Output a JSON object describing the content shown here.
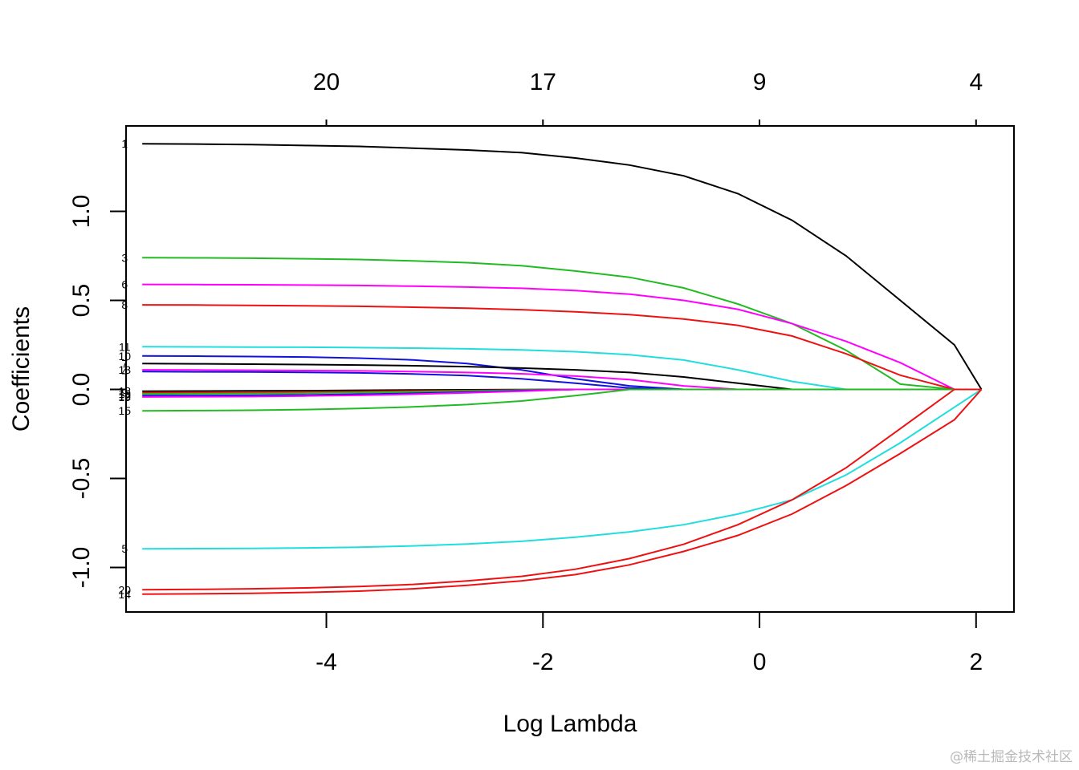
{
  "chart_data": {
    "type": "line",
    "title": "",
    "xlabel": "Log Lambda",
    "ylabel": "Coefficients",
    "xlim": [
      -5.85,
      2.35
    ],
    "ylim": [
      -1.25,
      1.48
    ],
    "x_ticks": [
      -4,
      -2,
      0,
      2
    ],
    "y_ticks": [
      -1.0,
      -0.5,
      0.0,
      0.5,
      1.0
    ],
    "y_tick_labels": [
      "-1.0",
      "-0.5",
      "0.0",
      "0.5",
      "1.0"
    ],
    "top_axis": {
      "positions": [
        -4,
        -2,
        0,
        2
      ],
      "labels": [
        "20",
        "17",
        "9",
        "4"
      ]
    },
    "grid": false,
    "legend": "none",
    "x": [
      -5.7,
      -5.2,
      -4.7,
      -4.2,
      -3.7,
      -3.2,
      -2.7,
      -2.2,
      -1.7,
      -1.2,
      -0.7,
      -0.2,
      0.3,
      0.8,
      1.3,
      1.8,
      2.05
    ],
    "series": [
      {
        "label": "1",
        "color": "#000000",
        "values": [
          1.38,
          1.378,
          1.375,
          1.37,
          1.365,
          1.355,
          1.345,
          1.33,
          1.3,
          1.26,
          1.2,
          1.1,
          0.95,
          0.75,
          0.5,
          0.25,
          0.0
        ]
      },
      {
        "label": "3",
        "color": "#22bb22",
        "values": [
          0.74,
          0.739,
          0.737,
          0.734,
          0.73,
          0.722,
          0.712,
          0.695,
          0.665,
          0.63,
          0.57,
          0.48,
          0.37,
          0.22,
          0.03,
          0.0,
          0.0
        ]
      },
      {
        "label": "6",
        "color": "#ff00ff",
        "values": [
          0.59,
          0.589,
          0.588,
          0.586,
          0.584,
          0.58,
          0.575,
          0.568,
          0.555,
          0.535,
          0.5,
          0.45,
          0.37,
          0.27,
          0.15,
          0.0,
          0.0
        ]
      },
      {
        "label": "8",
        "color": "#ee1111",
        "values": [
          0.475,
          0.474,
          0.472,
          0.47,
          0.467,
          0.462,
          0.456,
          0.448,
          0.436,
          0.42,
          0.395,
          0.36,
          0.3,
          0.2,
          0.08,
          0.0,
          0.0
        ]
      },
      {
        "label": "11",
        "color": "#22dddd",
        "values": [
          0.24,
          0.239,
          0.238,
          0.237,
          0.235,
          0.232,
          0.228,
          0.222,
          0.212,
          0.195,
          0.165,
          0.11,
          0.045,
          0.0,
          0.0,
          0.0,
          0.0
        ]
      },
      {
        "label": "10",
        "color": "#1111dd",
        "values": [
          0.188,
          0.187,
          0.185,
          0.182,
          0.176,
          0.166,
          0.145,
          0.11,
          0.06,
          0.02,
          0.0,
          0.0,
          0.0,
          0.0,
          0.0,
          0.0,
          0.0
        ]
      },
      {
        "label": "7",
        "color": "#000000",
        "values": [
          0.145,
          0.144,
          0.142,
          0.14,
          0.137,
          0.133,
          0.128,
          0.12,
          0.11,
          0.095,
          0.07,
          0.035,
          0.0,
          0.0,
          0.0,
          0.0,
          0.0
        ]
      },
      {
        "label": "13",
        "color": "#ff00ff",
        "values": [
          0.11,
          0.109,
          0.108,
          0.106,
          0.104,
          0.1,
          0.095,
          0.088,
          0.075,
          0.055,
          0.02,
          0.0,
          0.0,
          0.0,
          0.0,
          0.0,
          0.0
        ]
      },
      {
        "label": "4",
        "color": "#1111dd",
        "values": [
          0.1,
          0.099,
          0.098,
          0.096,
          0.093,
          0.087,
          0.078,
          0.06,
          0.035,
          0.008,
          0.0,
          0.0,
          0.0,
          0.0,
          0.0,
          0.0,
          0.0
        ]
      },
      {
        "label": "18",
        "color": "#000000",
        "values": [
          -0.01,
          -0.009,
          -0.008,
          -0.007,
          -0.005,
          -0.003,
          -0.002,
          -0.001,
          0.0,
          0.0,
          0.0,
          0.0,
          0.0,
          0.0,
          0.0,
          0.0,
          0.0
        ]
      },
      {
        "label": "9",
        "color": "#ee1111",
        "values": [
          -0.018,
          -0.017,
          -0.016,
          -0.014,
          -0.012,
          -0.009,
          -0.006,
          -0.003,
          0.0,
          0.0,
          0.0,
          0.0,
          0.0,
          0.0,
          0.0,
          0.0,
          0.0
        ]
      },
      {
        "label": "16",
        "color": "#22bb22",
        "values": [
          -0.025,
          -0.024,
          -0.023,
          -0.021,
          -0.018,
          -0.014,
          -0.009,
          -0.004,
          0.0,
          0.0,
          0.0,
          0.0,
          0.0,
          0.0,
          0.0,
          0.0,
          0.0
        ]
      },
      {
        "label": "12",
        "color": "#1111dd",
        "values": [
          -0.035,
          -0.034,
          -0.033,
          -0.031,
          -0.027,
          -0.022,
          -0.015,
          -0.007,
          0.0,
          0.0,
          0.0,
          0.0,
          0.0,
          0.0,
          0.0,
          0.0,
          0.0
        ]
      },
      {
        "label": "19",
        "color": "#ff00ff",
        "values": [
          -0.042,
          -0.041,
          -0.04,
          -0.037,
          -0.033,
          -0.027,
          -0.019,
          -0.01,
          0.0,
          0.0,
          0.0,
          0.0,
          0.0,
          0.0,
          0.0,
          0.0,
          0.0
        ]
      },
      {
        "label": "15",
        "color": "#22bb22",
        "values": [
          -0.12,
          -0.119,
          -0.117,
          -0.113,
          -0.107,
          -0.098,
          -0.085,
          -0.065,
          -0.035,
          0.0,
          0.0,
          0.0,
          0.0,
          0.0,
          0.0,
          0.0,
          0.0
        ]
      },
      {
        "label": "5",
        "color": "#22dddd",
        "values": [
          -0.895,
          -0.894,
          -0.893,
          -0.89,
          -0.886,
          -0.879,
          -0.868,
          -0.853,
          -0.83,
          -0.8,
          -0.76,
          -0.7,
          -0.62,
          -0.48,
          -0.3,
          -0.1,
          0.0
        ]
      },
      {
        "label": "20",
        "color": "#ee1111",
        "values": [
          -1.125,
          -1.123,
          -1.12,
          -1.115,
          -1.107,
          -1.095,
          -1.075,
          -1.05,
          -1.01,
          -0.95,
          -0.87,
          -0.76,
          -0.62,
          -0.44,
          -0.22,
          0.0,
          0.0
        ]
      },
      {
        "label": "14",
        "color": "#ee1111",
        "values": [
          -1.15,
          -1.148,
          -1.145,
          -1.14,
          -1.133,
          -1.12,
          -1.1,
          -1.075,
          -1.04,
          -0.985,
          -0.91,
          -0.82,
          -0.7,
          -0.54,
          -0.36,
          -0.17,
          0.0
        ]
      }
    ]
  },
  "watermark": "@稀土掘金技术社区"
}
